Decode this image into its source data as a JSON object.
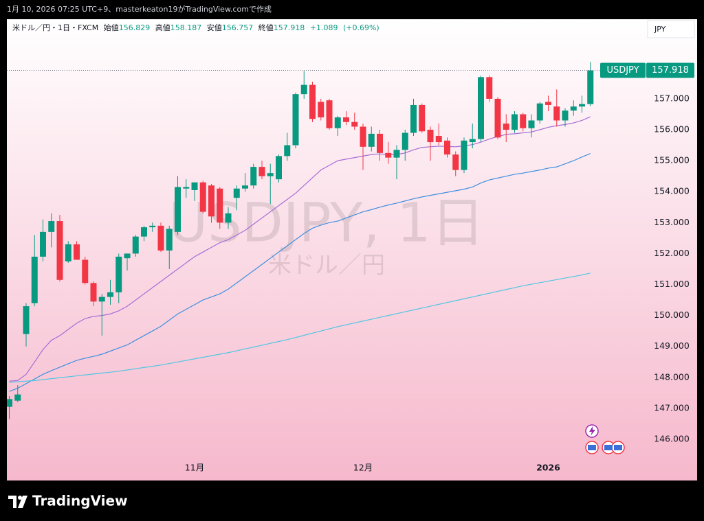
{
  "page": {
    "header_text": "1月 10, 2026 07:25 UTC+9、masterkeaton19がTradingView.comで作成",
    "brand": "TradingView"
  },
  "chart_data": {
    "type": "candlestick",
    "symbol_info": "米ドル／円・1日・FXCM",
    "legend_labels": {
      "open": "始値",
      "high": "高値",
      "low": "安値",
      "close": "終値"
    },
    "change": "+1.089",
    "change_percent": "(+0.69%)",
    "symbol": "USDJPY",
    "currency": "JPY",
    "watermark": "USDJPY, 1日",
    "watermark_sub": "米ドル／円",
    "up_color": "#089981",
    "down_color": "#f23645",
    "grid": false,
    "categories": [
      null,
      null,
      null,
      null,
      null,
      null,
      null,
      null,
      null,
      null,
      null,
      null,
      null,
      null,
      null,
      null,
      null,
      null,
      null,
      null,
      null,
      null,
      "11月",
      null,
      null,
      null,
      null,
      null,
      null,
      null,
      null,
      null,
      null,
      null,
      null,
      null,
      null,
      null,
      null,
      null,
      null,
      null,
      "12月",
      null,
      null,
      null,
      null,
      null,
      null,
      null,
      null,
      null,
      null,
      null,
      null,
      null,
      null,
      null,
      null,
      null,
      null,
      null,
      null,
      null,
      "2026",
      null,
      null,
      null,
      null,
      null
    ],
    "open": [
      147.05,
      147.25,
      149.4,
      150.4,
      151.9,
      152.7,
      153.05,
      151.75,
      152.3,
      151.8,
      151.05,
      150.45,
      150.6,
      150.75,
      151.85,
      152.0,
      152.55,
      152.85,
      152.9,
      152.1,
      152.7,
      154.1,
      154.05,
      154.3,
      154.2,
      154.1,
      153.0,
      153.8,
      154.1,
      154.2,
      154.8,
      154.5,
      154.4,
      155.15,
      155.5,
      157.15,
      157.45,
      156.9,
      156.95,
      156.05,
      156.4,
      156.25,
      156.1,
      155.45,
      155.87,
      155.25,
      155.1,
      155.35,
      155.9,
      156.8,
      156.0,
      155.8,
      155.65,
      155.2,
      154.7,
      155.6,
      155.7,
      157.7,
      157.0,
      156.2,
      156.0,
      156.5,
      156.05,
      156.3,
      156.9,
      156.75,
      156.3,
      156.62,
      156.75,
      156.829
    ],
    "high": [
      147.4,
      147.75,
      150.4,
      152.6,
      153.1,
      153.3,
      153.25,
      152.4,
      152.4,
      151.9,
      151.1,
      150.7,
      151.15,
      152.0,
      152.0,
      152.6,
      152.9,
      153.0,
      153.0,
      152.9,
      154.5,
      154.4,
      154.3,
      154.35,
      154.25,
      154.15,
      153.5,
      154.2,
      154.6,
      154.9,
      155.0,
      154.9,
      155.2,
      155.9,
      157.2,
      157.9,
      157.55,
      157.0,
      157.0,
      156.45,
      156.6,
      156.55,
      156.2,
      156.1,
      156.0,
      155.6,
      155.5,
      156.0,
      157.0,
      156.85,
      156.1,
      156.2,
      155.75,
      155.3,
      155.75,
      156.2,
      157.75,
      157.75,
      157.05,
      156.5,
      156.6,
      156.55,
      156.5,
      156.9,
      157.1,
      157.3,
      156.7,
      156.95,
      157.1,
      158.187
    ],
    "low": [
      146.65,
      147.2,
      149.0,
      150.3,
      151.75,
      152.2,
      151.1,
      151.7,
      151.8,
      151.0,
      150.3,
      149.35,
      150.35,
      150.4,
      151.45,
      151.9,
      152.4,
      152.7,
      152.05,
      151.5,
      152.6,
      153.8,
      153.7,
      153.3,
      153.0,
      152.8,
      152.8,
      153.4,
      154.0,
      154.1,
      154.4,
      153.6,
      154.3,
      155.0,
      155.4,
      157.0,
      156.25,
      156.3,
      156.0,
      155.8,
      156.15,
      156.0,
      154.7,
      155.3,
      155.0,
      154.9,
      154.4,
      155.0,
      155.8,
      155.9,
      155.0,
      155.5,
      155.1,
      154.5,
      154.6,
      155.4,
      155.6,
      156.9,
      155.7,
      155.6,
      155.9,
      155.95,
      155.75,
      156.2,
      156.6,
      156.1,
      156.1,
      156.45,
      156.55,
      156.757
    ],
    "close": [
      147.3,
      147.45,
      150.3,
      151.9,
      152.7,
      153.05,
      151.15,
      152.3,
      151.8,
      151.05,
      150.45,
      150.6,
      150.75,
      151.9,
      152.0,
      152.55,
      152.85,
      152.9,
      152.1,
      152.8,
      154.15,
      154.15,
      154.3,
      153.35,
      153.2,
      153.0,
      153.3,
      154.1,
      154.2,
      154.8,
      154.5,
      154.6,
      155.15,
      155.5,
      157.15,
      157.45,
      156.35,
      156.4,
      156.05,
      156.4,
      156.25,
      156.1,
      155.45,
      155.87,
      155.25,
      155.1,
      155.35,
      155.9,
      156.8,
      155.95,
      155.6,
      155.6,
      155.2,
      154.7,
      155.65,
      155.7,
      157.7,
      157.0,
      155.75,
      156.0,
      156.5,
      156.05,
      156.3,
      156.85,
      156.8,
      156.3,
      156.62,
      156.75,
      156.83,
      157.918
    ],
    "series": [
      {
        "color": "#a66cd6",
        "values": [
          147.88,
          147.9,
          148.1,
          148.5,
          148.9,
          149.2,
          149.35,
          149.55,
          149.75,
          149.9,
          149.97,
          150.0,
          150.05,
          150.15,
          150.3,
          150.5,
          150.7,
          150.9,
          151.1,
          151.3,
          151.5,
          151.7,
          151.9,
          152.05,
          152.2,
          152.35,
          152.45,
          152.6,
          152.75,
          152.95,
          153.15,
          153.35,
          153.55,
          153.75,
          153.95,
          154.2,
          154.45,
          154.7,
          154.85,
          155.0,
          155.05,
          155.1,
          155.15,
          155.2,
          155.22,
          155.2,
          155.2,
          155.25,
          155.35,
          155.43,
          155.45,
          155.47,
          155.46,
          155.45,
          155.48,
          155.52,
          155.6,
          155.7,
          155.78,
          155.85,
          155.87,
          155.9,
          155.93,
          156.0,
          156.08,
          156.13,
          156.17,
          156.22,
          156.3,
          156.42
        ]
      },
      {
        "color": "#3d8fe0",
        "values": [
          147.55,
          147.65,
          147.8,
          147.95,
          148.1,
          148.22,
          148.33,
          148.44,
          148.55,
          148.62,
          148.68,
          148.75,
          148.85,
          148.95,
          149.05,
          149.2,
          149.35,
          149.5,
          149.65,
          149.85,
          150.05,
          150.2,
          150.35,
          150.5,
          150.6,
          150.7,
          150.85,
          151.05,
          151.25,
          151.45,
          151.65,
          151.85,
          152.05,
          152.25,
          152.45,
          152.65,
          152.82,
          152.92,
          153.0,
          153.05,
          153.15,
          153.25,
          153.35,
          153.42,
          153.5,
          153.57,
          153.63,
          153.7,
          153.77,
          153.83,
          153.88,
          153.93,
          153.98,
          154.03,
          154.08,
          154.15,
          154.28,
          154.38,
          154.44,
          154.5,
          154.56,
          154.6,
          154.65,
          154.7,
          154.76,
          154.8,
          154.9,
          155.0,
          155.12,
          155.23
        ]
      },
      {
        "color": "#4fc6e3",
        "values": [
          147.84,
          147.86,
          147.88,
          147.9,
          147.93,
          147.96,
          147.99,
          148.02,
          148.05,
          148.08,
          148.11,
          148.14,
          148.17,
          148.2,
          148.24,
          148.28,
          148.32,
          148.36,
          148.4,
          148.45,
          148.5,
          148.55,
          148.6,
          148.65,
          148.7,
          148.75,
          148.8,
          148.86,
          148.92,
          148.98,
          149.04,
          149.1,
          149.16,
          149.22,
          149.29,
          149.36,
          149.43,
          149.5,
          149.57,
          149.64,
          149.7,
          149.76,
          149.82,
          149.88,
          149.94,
          150.0,
          150.06,
          150.12,
          150.18,
          150.24,
          150.3,
          150.36,
          150.42,
          150.48,
          150.54,
          150.6,
          150.66,
          150.72,
          150.78,
          150.84,
          150.9,
          150.96,
          151.01,
          151.06,
          151.11,
          151.16,
          151.21,
          151.26,
          151.31,
          151.37
        ]
      }
    ],
    "ylim": [
      145.38,
      159.57
    ],
    "yticks": [
      {
        "value": 146,
        "label": "146.000"
      },
      {
        "value": 147,
        "label": "147.000"
      },
      {
        "value": 148,
        "label": "148.000"
      },
      {
        "value": 149,
        "label": "149.000"
      },
      {
        "value": 150,
        "label": "150.000"
      },
      {
        "value": 151,
        "label": "151.000"
      },
      {
        "value": 152,
        "label": "152.000"
      },
      {
        "value": 153,
        "label": "153.000"
      },
      {
        "value": 154,
        "label": "154.000"
      },
      {
        "value": 155,
        "label": "155.000"
      },
      {
        "value": 156,
        "label": "156.000"
      },
      {
        "value": 157,
        "label": "157.000"
      }
    ]
  }
}
